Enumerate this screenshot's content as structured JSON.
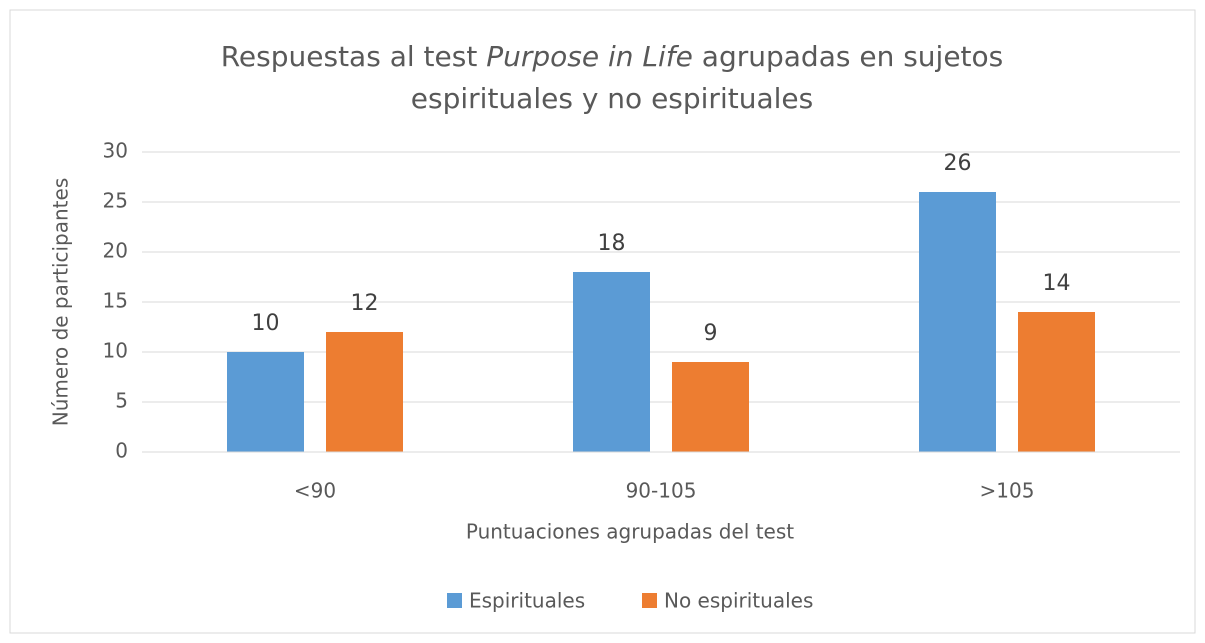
{
  "chart_data": {
    "type": "bar",
    "title": {
      "before": "Respuestas al test",
      "italic": "Purpose in Life",
      "after": "agrupadas en sujetos",
      "line2": "espirituales y no espirituales"
    },
    "x_label": "Puntuaciones agrupadas del test",
    "y_label": "Número de participantes",
    "categories": [
      "<90",
      "90-105",
      ">105"
    ],
    "series": [
      {
        "name": "Espirituales",
        "color": "#5b9bd5",
        "values": [
          10,
          18,
          26
        ]
      },
      {
        "name": "No espirituales",
        "color": "#ed7d31",
        "values": [
          12,
          9,
          14
        ]
      }
    ],
    "ylim": [
      0,
      30
    ],
    "yticks": [
      0,
      5,
      10,
      15,
      20,
      25,
      30
    ],
    "grid": true,
    "legend": "bottom"
  }
}
